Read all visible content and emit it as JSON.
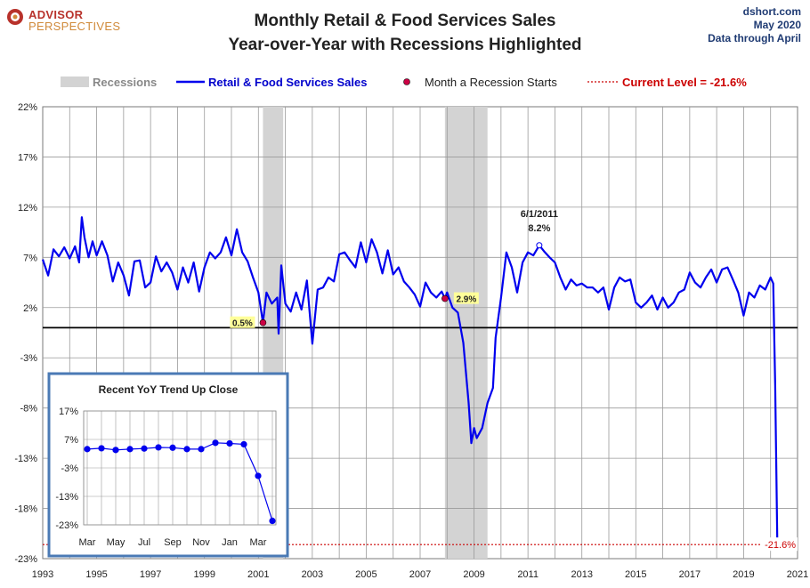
{
  "header": {
    "logo_line1": "ADVISOR",
    "logo_line2": "PERSPECTIVES",
    "title_line1": "Monthly Retail & Food Services Sales",
    "title_line2": "Year-over-Year with Recessions Highlighted",
    "source": "dshort.com",
    "date": "May 2020",
    "data_through": "Data through April"
  },
  "legend": {
    "recessions": "Recessions",
    "series": "Retail & Food Services Sales",
    "recession_start": "Month a Recession Starts",
    "current_level": "Current Level = -21.6%"
  },
  "colors": {
    "series": "#0000ee",
    "recession_band": "#d3d3d3",
    "recession_marker": "#cc0044",
    "current_level": "#cc0000",
    "grid": "#9a9a9a",
    "zero_line": "#000000",
    "inset_border": "#4a7ab5"
  },
  "chart_data": [
    {
      "type": "line",
      "title": "Monthly Retail & Food Services Sales Year-over-Year with Recessions Highlighted",
      "x_ticks": [
        "1993",
        "1995",
        "1997",
        "1999",
        "2001",
        "2003",
        "2005",
        "2007",
        "2009",
        "2011",
        "2013",
        "2015",
        "2017",
        "2019",
        "2021"
      ],
      "y_ticks": [
        "22%",
        "17%",
        "12%",
        "7%",
        "2%",
        "-3%",
        "-8%",
        "-13%",
        "-18%",
        "-23%"
      ],
      "ylim": [
        -23,
        22
      ],
      "xlim": [
        1993,
        2021
      ],
      "grid": true,
      "zero_line": 0,
      "recessions": [
        {
          "start": 2001.17,
          "end": 2001.92
        },
        {
          "start": 2007.92,
          "end": 2009.5
        }
      ],
      "recession_starts": [
        {
          "x": 2001.17,
          "y": 0.5,
          "label": "0.5%"
        },
        {
          "x": 2007.92,
          "y": 2.9,
          "label": "2.9%"
        }
      ],
      "peak_annotation": {
        "x": 2011.42,
        "y": 8.2,
        "date": "6/1/2011",
        "value": "8.2%"
      },
      "current_level": {
        "y": -21.6,
        "label": "-21.6%"
      },
      "series": [
        {
          "name": "Retail & Food Services Sales",
          "points": [
            [
              1993.0,
              6.8
            ],
            [
              1993.2,
              5.2
            ],
            [
              1993.4,
              7.8
            ],
            [
              1993.6,
              7.1
            ],
            [
              1993.8,
              8.0
            ],
            [
              1994.0,
              6.9
            ],
            [
              1994.2,
              8.1
            ],
            [
              1994.35,
              6.5
            ],
            [
              1994.45,
              11.0
            ],
            [
              1994.55,
              9.0
            ],
            [
              1994.7,
              7.0
            ],
            [
              1994.85,
              8.6
            ],
            [
              1995.0,
              7.2
            ],
            [
              1995.2,
              8.6
            ],
            [
              1995.4,
              7.2
            ],
            [
              1995.6,
              4.6
            ],
            [
              1995.8,
              6.5
            ],
            [
              1996.0,
              5.2
            ],
            [
              1996.2,
              3.2
            ],
            [
              1996.4,
              6.6
            ],
            [
              1996.6,
              6.7
            ],
            [
              1996.8,
              4.0
            ],
            [
              1997.0,
              4.5
            ],
            [
              1997.2,
              7.1
            ],
            [
              1997.4,
              5.6
            ],
            [
              1997.6,
              6.5
            ],
            [
              1997.8,
              5.5
            ],
            [
              1998.0,
              3.8
            ],
            [
              1998.2,
              6.0
            ],
            [
              1998.4,
              4.5
            ],
            [
              1998.6,
              6.5
            ],
            [
              1998.8,
              3.6
            ],
            [
              1999.0,
              6.0
            ],
            [
              1999.2,
              7.5
            ],
            [
              1999.4,
              6.9
            ],
            [
              1999.6,
              7.5
            ],
            [
              1999.8,
              9.0
            ],
            [
              2000.0,
              7.2
            ],
            [
              2000.2,
              9.8
            ],
            [
              2000.4,
              7.5
            ],
            [
              2000.6,
              6.6
            ],
            [
              2000.8,
              5.0
            ],
            [
              2001.0,
              3.5
            ],
            [
              2001.17,
              0.5
            ],
            [
              2001.3,
              3.5
            ],
            [
              2001.5,
              2.4
            ],
            [
              2001.7,
              3.0
            ],
            [
              2001.75,
              -0.6
            ],
            [
              2001.85,
              6.2
            ],
            [
              2002.0,
              2.4
            ],
            [
              2002.2,
              1.6
            ],
            [
              2002.4,
              3.5
            ],
            [
              2002.6,
              1.8
            ],
            [
              2002.8,
              4.7
            ],
            [
              2003.0,
              -1.6
            ],
            [
              2003.2,
              3.8
            ],
            [
              2003.4,
              4.0
            ],
            [
              2003.6,
              5.0
            ],
            [
              2003.8,
              4.6
            ],
            [
              2004.0,
              7.3
            ],
            [
              2004.2,
              7.5
            ],
            [
              2004.4,
              6.7
            ],
            [
              2004.6,
              6.0
            ],
            [
              2004.8,
              8.5
            ],
            [
              2005.0,
              6.5
            ],
            [
              2005.2,
              8.8
            ],
            [
              2005.4,
              7.5
            ],
            [
              2005.6,
              5.4
            ],
            [
              2005.8,
              7.7
            ],
            [
              2006.0,
              5.3
            ],
            [
              2006.2,
              6.0
            ],
            [
              2006.4,
              4.6
            ],
            [
              2006.6,
              4.0
            ],
            [
              2006.8,
              3.3
            ],
            [
              2007.0,
              2.1
            ],
            [
              2007.2,
              4.5
            ],
            [
              2007.4,
              3.5
            ],
            [
              2007.6,
              3.0
            ],
            [
              2007.8,
              3.6
            ],
            [
              2007.92,
              2.9
            ],
            [
              2008.0,
              3.5
            ],
            [
              2008.2,
              2.0
            ],
            [
              2008.4,
              1.5
            ],
            [
              2008.6,
              -1.5
            ],
            [
              2008.8,
              -7.5
            ],
            [
              2008.9,
              -11.5
            ],
            [
              2009.0,
              -10.0
            ],
            [
              2009.1,
              -11.0
            ],
            [
              2009.3,
              -10.0
            ],
            [
              2009.5,
              -7.5
            ],
            [
              2009.7,
              -6.0
            ],
            [
              2009.8,
              -1.0
            ],
            [
              2010.0,
              3.0
            ],
            [
              2010.2,
              7.5
            ],
            [
              2010.4,
              6.0
            ],
            [
              2010.6,
              3.5
            ],
            [
              2010.8,
              6.5
            ],
            [
              2011.0,
              7.5
            ],
            [
              2011.2,
              7.2
            ],
            [
              2011.42,
              8.2
            ],
            [
              2011.6,
              7.6
            ],
            [
              2011.8,
              7.0
            ],
            [
              2012.0,
              6.5
            ],
            [
              2012.2,
              5.0
            ],
            [
              2012.4,
              3.8
            ],
            [
              2012.6,
              4.8
            ],
            [
              2012.8,
              4.2
            ],
            [
              2013.0,
              4.4
            ],
            [
              2013.2,
              4.0
            ],
            [
              2013.4,
              4.0
            ],
            [
              2013.6,
              3.5
            ],
            [
              2013.8,
              4.0
            ],
            [
              2014.0,
              1.8
            ],
            [
              2014.2,
              4.0
            ],
            [
              2014.4,
              5.0
            ],
            [
              2014.6,
              4.6
            ],
            [
              2014.8,
              4.8
            ],
            [
              2015.0,
              2.5
            ],
            [
              2015.2,
              2.0
            ],
            [
              2015.4,
              2.5
            ],
            [
              2015.6,
              3.2
            ],
            [
              2015.8,
              1.8
            ],
            [
              2016.0,
              3.0
            ],
            [
              2016.2,
              2.0
            ],
            [
              2016.4,
              2.5
            ],
            [
              2016.6,
              3.5
            ],
            [
              2016.8,
              3.8
            ],
            [
              2017.0,
              5.5
            ],
            [
              2017.2,
              4.5
            ],
            [
              2017.4,
              4.0
            ],
            [
              2017.6,
              5.0
            ],
            [
              2017.8,
              5.8
            ],
            [
              2018.0,
              4.5
            ],
            [
              2018.2,
              5.8
            ],
            [
              2018.4,
              6.0
            ],
            [
              2018.6,
              4.8
            ],
            [
              2018.8,
              3.5
            ],
            [
              2019.0,
              1.2
            ],
            [
              2019.2,
              3.5
            ],
            [
              2019.4,
              3.0
            ],
            [
              2019.6,
              4.2
            ],
            [
              2019.8,
              3.8
            ],
            [
              2020.0,
              5.0
            ],
            [
              2020.1,
              4.4
            ],
            [
              2020.17,
              -5.8
            ],
            [
              2020.25,
              -21.6
            ]
          ]
        }
      ]
    },
    {
      "type": "line",
      "title": "Recent  YoY Trend Up Close",
      "categories": [
        "Mar",
        "Apr",
        "May",
        "Jun",
        "Jul",
        "Aug",
        "Sep",
        "Oct",
        "Nov",
        "Dec",
        "Jan",
        "Feb",
        "Mar",
        "Apr"
      ],
      "category_ticks": [
        "Mar",
        "May",
        "Jul",
        "Sep",
        "Nov",
        "Jan",
        "Mar"
      ],
      "y_ticks": [
        "17%",
        "7%",
        "-3%",
        "-13%",
        "-23%"
      ],
      "ylim": [
        -23,
        17
      ],
      "grid": true,
      "series": [
        {
          "values": [
            3.6,
            3.9,
            3.3,
            3.6,
            3.8,
            4.2,
            4.1,
            3.6,
            3.6,
            5.8,
            5.6,
            5.3,
            -5.8,
            -21.6
          ]
        }
      ]
    }
  ]
}
